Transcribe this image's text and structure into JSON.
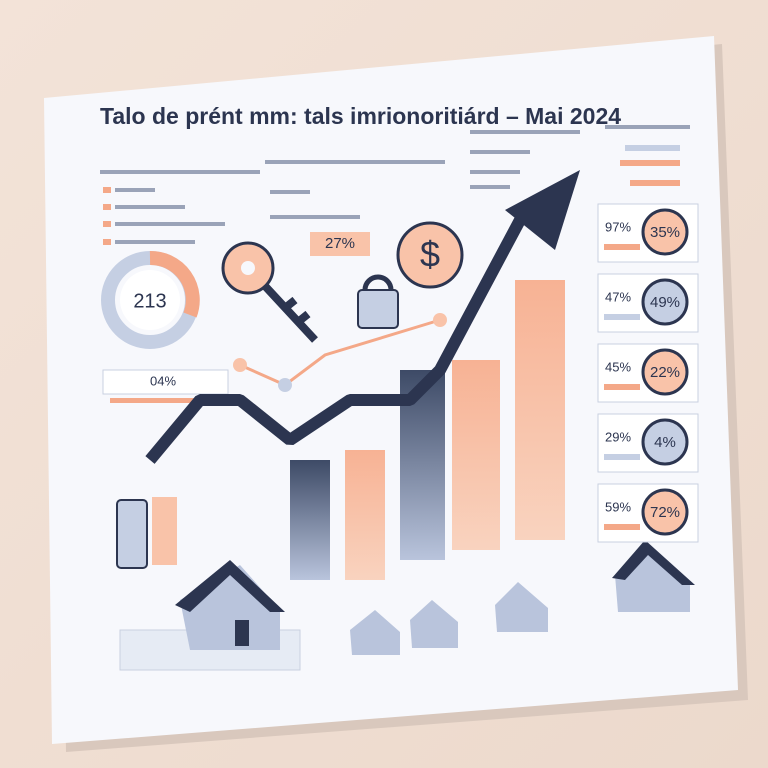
{
  "title": "Talo de prént mm: tals imrionoritiárd – Mai 2024",
  "callouts": {
    "center": "27%",
    "gauge": "213",
    "progress": "04%"
  },
  "kpis": [
    {
      "small": "97%",
      "ring": "35%"
    },
    {
      "small": "47%",
      "ring": "49%"
    },
    {
      "small": "45%",
      "ring": "22%"
    },
    {
      "small": "29%",
      "ring": "4%"
    },
    {
      "small": "59%",
      "ring": "72%"
    }
  ]
}
